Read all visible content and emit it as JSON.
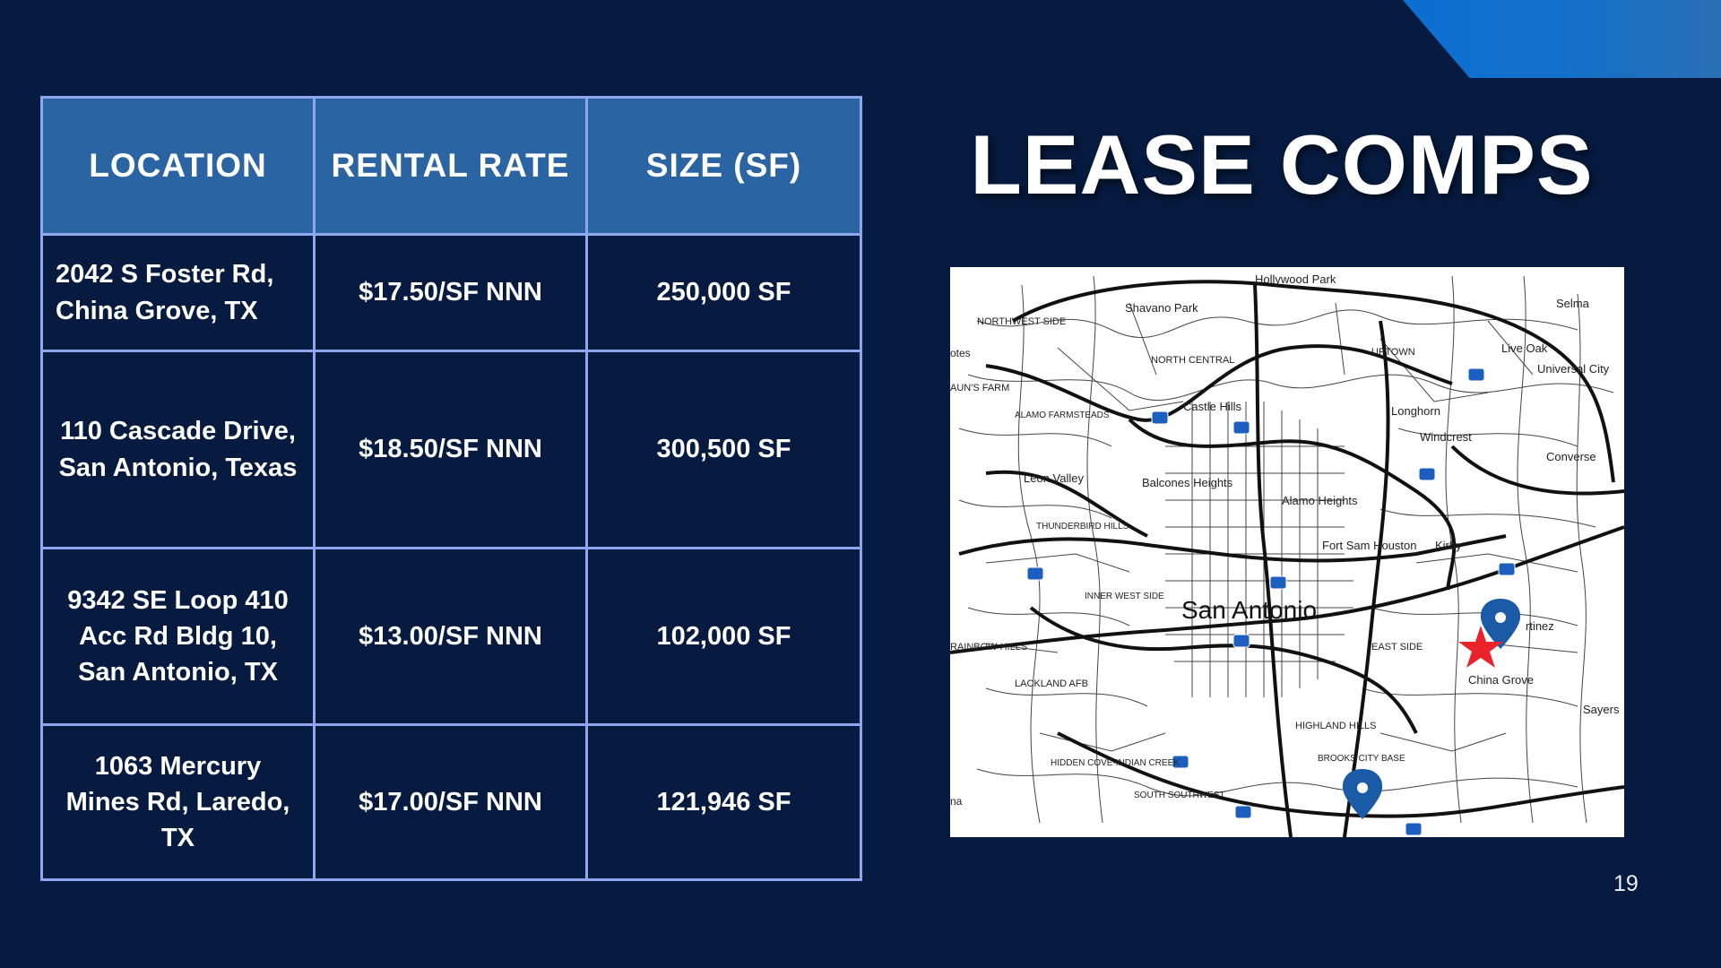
{
  "title": "LEASE COMPS",
  "page_number": "19",
  "table": {
    "headers": [
      "LOCATION",
      "RENTAL RATE",
      "SIZE (SF)"
    ],
    "rows": [
      {
        "location": "2042 S Foster Rd, China Grove, TX",
        "rate": "$17.50/SF NNN",
        "size": "250,000 SF"
      },
      {
        "location": "110 Cascade Drive, San Antonio, Texas",
        "rate": "$18.50/SF NNN",
        "size": "300,500 SF"
      },
      {
        "location": "9342 SE Loop 410 Acc Rd Bldg 10, San Antonio, TX",
        "rate": "$13.00/SF NNN",
        "size": "102,000 SF"
      },
      {
        "location": "1063 Mercury Mines Rd, Laredo, TX",
        "rate": "$17.00/SF NNN",
        "size": "121,946 SF"
      }
    ]
  },
  "map": {
    "city_label": "San Antonio",
    "labels": {
      "hollywood_park": "Hollywood Park",
      "shavano_park": "Shavano Park",
      "selma": "Selma",
      "northwest_side": "NORTHWEST SIDE",
      "uptown": "UPTOWN",
      "north_central": "NORTH CENTRAL",
      "live_oak": "Live Oak",
      "universal_city": "Universal City",
      "castle_hills": "Castle Hills",
      "longhorn": "Longhorn",
      "alamo_farmsteads": "ALAMO FARMSTEADS",
      "windcrest": "Windcrest",
      "converse": "Converse",
      "leon_valley": "Leon Valley",
      "balcones_heights": "Balcones Heights",
      "alamo_heights": "Alamo Heights",
      "thunderbird_hills": "THUNDERBIRD HILLS",
      "fort_sam_houston": "Fort Sam Houston",
      "kirby": "Kirby",
      "inner_west_side": "INNER WEST SIDE",
      "martinez": "rtinez",
      "rainbow_hills": "RAINBOW HILLS",
      "east_side": "EAST SIDE",
      "china_grove": "China Grove",
      "lackland_afb": "LACKLAND AFB",
      "sayers": "Sayers",
      "highland_hills": "HIGHLAND HILLS",
      "hidden_cove": "HIDDEN COVE-INDIAN CREEK",
      "brooks_city_base": "BROOKS CITY BASE",
      "south_southwest": "SOUTH SOUTHWEST",
      "otes": "otes",
      "auns_farm": "AUN'S FARM",
      "na": "na"
    },
    "pin_color": "#1a5aa6",
    "star_color": "#e8242a"
  },
  "colors": {
    "background": "#061b3f",
    "header_fill": "#2a64a3",
    "grid_border": "#8fa6f0",
    "accent": "#0b6fd1"
  }
}
